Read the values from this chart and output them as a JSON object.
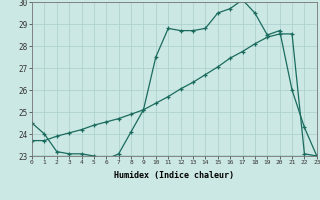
{
  "xlabel": "Humidex (Indice chaleur)",
  "background_color": "#cce8e4",
  "grid_color_major": "#aacfcb",
  "grid_color_minor": "#bbddd9",
  "line_color": "#1a6b5e",
  "x_min": 0,
  "x_max": 23,
  "y_min": 23,
  "y_max": 30,
  "line1_x": [
    0,
    1,
    2,
    3,
    4,
    5,
    6,
    7,
    8,
    9,
    10,
    11,
    12,
    13,
    14,
    15,
    16,
    17,
    18,
    19,
    20,
    21,
    22,
    23
  ],
  "line1_y": [
    24.5,
    24.0,
    23.2,
    23.1,
    23.1,
    23.0,
    22.85,
    23.1,
    24.1,
    25.1,
    27.5,
    28.8,
    28.7,
    28.7,
    28.8,
    29.5,
    29.7,
    30.1,
    29.5,
    28.5,
    28.7,
    26.0,
    24.3,
    23.0
  ],
  "line2_x": [
    0,
    6,
    20,
    23
  ],
  "line2_y": [
    23.0,
    23.0,
    23.0,
    23.0
  ],
  "line3_x": [
    0,
    1,
    2,
    3,
    4,
    5,
    6,
    7,
    8,
    9,
    10,
    11,
    12,
    13,
    14,
    15,
    16,
    17,
    18,
    19,
    20,
    21,
    22,
    23
  ],
  "line3_y": [
    23.7,
    23.7,
    23.9,
    24.05,
    24.2,
    24.4,
    24.55,
    24.7,
    24.9,
    25.1,
    25.4,
    25.7,
    26.05,
    26.35,
    26.7,
    27.05,
    27.45,
    27.75,
    28.1,
    28.4,
    28.55,
    28.55,
    23.1,
    23.0
  ],
  "tick_labels": [
    "0",
    "1",
    "2",
    "3",
    "4",
    "5",
    "6",
    "7",
    "8",
    "9",
    "10",
    "11",
    "12",
    "13",
    "14",
    "15",
    "16",
    "17",
    "18",
    "19",
    "20",
    "21",
    "22",
    "23"
  ]
}
